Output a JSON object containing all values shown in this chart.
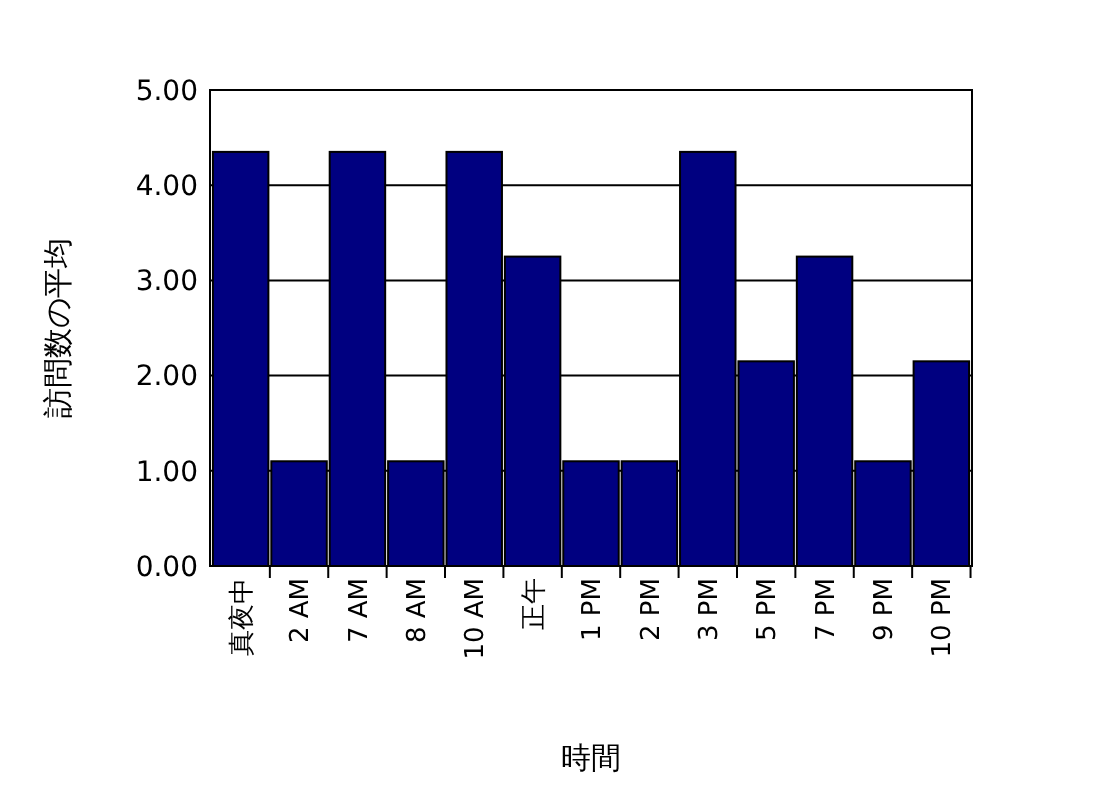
{
  "chart_data": {
    "type": "bar",
    "xlabel": "時間",
    "ylabel": "訪問数の平均",
    "categories": [
      "真夜中",
      "2 AM",
      "7 AM",
      "8 AM",
      "10 AM",
      "正午",
      "1 PM",
      "2 PM",
      "3 PM",
      "5 PM",
      "7 PM",
      "9 PM",
      "10 PM"
    ],
    "values": [
      4.35,
      1.1,
      4.35,
      1.1,
      4.35,
      3.25,
      1.1,
      1.1,
      4.35,
      2.15,
      3.25,
      1.1,
      2.15
    ],
    "color": "#000080",
    "ylim": [
      0,
      5
    ],
    "yticks": [
      {
        "value": 0,
        "label": "0.00"
      },
      {
        "value": 1,
        "label": "1.00"
      },
      {
        "value": 2,
        "label": "2.00"
      },
      {
        "value": 3,
        "label": "3.00"
      },
      {
        "value": 4,
        "label": "4.00"
      },
      {
        "value": 5,
        "label": "5.00"
      }
    ],
    "grid": "y"
  }
}
